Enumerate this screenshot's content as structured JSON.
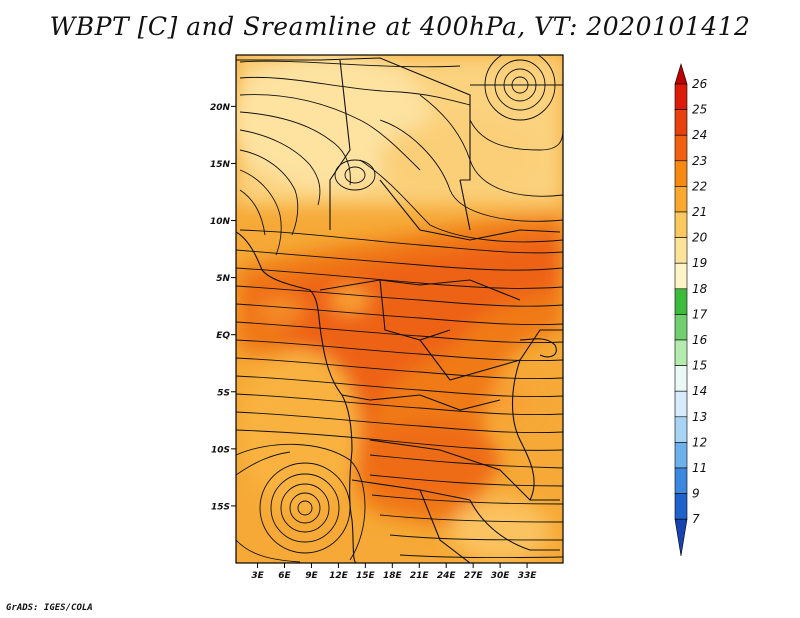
{
  "title": "WBPT [C] and Sreamline at 400hPa, VT: 2020101412",
  "footer": "GrADS: IGES/COLA",
  "map": {
    "lat_labels": [
      "20N",
      "15N",
      "10N",
      "5N",
      "EQ",
      "5S",
      "10S",
      "15S"
    ],
    "lon_labels": [
      "3E",
      "6E",
      "9E",
      "12E",
      "15E",
      "18E",
      "21E",
      "24E",
      "27E",
      "30E",
      "33E"
    ],
    "lat_values": [
      20,
      15,
      10,
      5,
      0,
      -5,
      -10,
      -15
    ],
    "lon_values": [
      3,
      6,
      9,
      12,
      15,
      18,
      21,
      24,
      27,
      30,
      33
    ],
    "lat_range": [
      -20,
      24.5
    ],
    "lon_range": [
      0.6,
      37
    ],
    "field": "Wet-bulb potential temperature",
    "units": "C",
    "level": "400hPa"
  },
  "colorbar": {
    "levels": [
      "26",
      "25",
      "24",
      "23",
      "22",
      "21",
      "20",
      "19",
      "18",
      "17",
      "16",
      "15",
      "14",
      "13",
      "12",
      "11",
      "9",
      "7"
    ],
    "colors": [
      "#c00000",
      "#dd1b0b",
      "#e8400f",
      "#f06010",
      "#f68a12",
      "#f9a830",
      "#fbc860",
      "#fde49a",
      "#fdf4c8",
      "#3dbb3d",
      "#70d070",
      "#b4ecb0",
      "#eaf8f6",
      "#d6ecfa",
      "#a8d4f4",
      "#6cb0ec",
      "#3c88e0",
      "#2062cc",
      "#1544b0"
    ]
  }
}
